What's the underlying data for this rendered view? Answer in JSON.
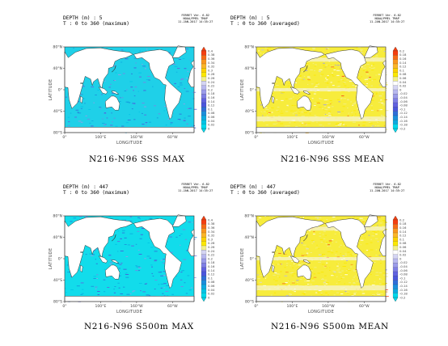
{
  "ferret_label": [
    "FERRET Ver. 6.82",
    "NOAA/PMEL TMAP",
    "11-JAN-2017 14:35:27"
  ],
  "palettes": {
    "max": [
      "#f43e10",
      "#f76a16",
      "#f9961e",
      "#fbb428",
      "#fdd000",
      "#fbe800",
      "#f2f08a",
      "#d5d5f3",
      "#b8b8ef",
      "#9b9bea",
      "#7e7ee5",
      "#6161e0",
      "#4a55dc",
      "#2f6ed8",
      "#1b8edb",
      "#0da9e0",
      "#00c3e5",
      "#00d8eb"
    ],
    "mean": [
      "#f43e10",
      "#f76a16",
      "#f9961e",
      "#fbb428",
      "#fdd000",
      "#fbe800",
      "#f2f08a",
      "#ffffff",
      "#d5d5f3",
      "#b8b8ef",
      "#9b9bea",
      "#7e7ee5",
      "#6161e0",
      "#4a55dc",
      "#2f6ed8",
      "#1b8edb",
      "#0da9e0",
      "#00d8eb"
    ]
  },
  "chart_data": [
    {
      "type": "heatmap",
      "title": "N216-N96 SSS MAX",
      "header": [
        "DEPTH (m) : 5",
        "T : 0 to 360 (maximum)"
      ],
      "xlabel": "LONGITUDE",
      "ylabel": "LATITUDE",
      "x_ticks": [
        "0°",
        "100°E",
        "160°W",
        "60°W"
      ],
      "y_ticks": [
        "80°N",
        "40°N",
        "0°",
        "40°S",
        "80°S"
      ],
      "colorbar": [
        "0.4",
        "0.38",
        "0.36",
        "0.34",
        "0.32",
        "0.3",
        "0.28",
        "0.26",
        "0.24",
        "0.22",
        "0.2",
        "0.18",
        "0.16",
        "0.14",
        "0.12",
        "0.1",
        "0.08",
        "0.06",
        "0.04",
        "0.02",
        "0"
      ],
      "palette": "max",
      "dominant_color": "#1fd0e8"
    },
    {
      "type": "heatmap",
      "title": "N216-N96 SSS MEAN",
      "header": [
        "DEPTH (m) : 5",
        "T : 0 to 360 (averaged)"
      ],
      "xlabel": "LONGITUDE",
      "ylabel": "LATITUDE",
      "x_ticks": [
        "0°",
        "100°E",
        "160°W",
        "60°W"
      ],
      "y_ticks": [
        "80°N",
        "40°N",
        "0°",
        "40°S",
        "80°S"
      ],
      "colorbar": [
        "0.2",
        "0.18",
        "0.16",
        "0.14",
        "0.12",
        "0.1",
        "0.08",
        "0.06",
        "0.04",
        "0.02",
        "0",
        "-0.02",
        "-0.04",
        "-0.06",
        "-0.08",
        "-0.1",
        "-0.12",
        "-0.14",
        "-0.16",
        "-0.18",
        "-0.2"
      ],
      "palette": "mean",
      "dominant_color": "#f7ec3c"
    },
    {
      "type": "heatmap",
      "title": "N216-N96 S500m MAX",
      "header": [
        "DEPTH (m) : 447",
        "T : 0 to 360 (maximum)"
      ],
      "xlabel": "LONGITUDE",
      "ylabel": "LATITUDE",
      "x_ticks": [
        "0°",
        "100°E",
        "160°W",
        "60°W"
      ],
      "y_ticks": [
        "80°N",
        "40°N",
        "0°",
        "40°S",
        "80°S"
      ],
      "colorbar": [
        "0.4",
        "0.38",
        "0.36",
        "0.34",
        "0.32",
        "0.3",
        "0.28",
        "0.26",
        "0.24",
        "0.22",
        "0.2",
        "0.18",
        "0.16",
        "0.14",
        "0.12",
        "0.1",
        "0.08",
        "0.06",
        "0.04",
        "0.02",
        "0"
      ],
      "palette": "max",
      "dominant_color": "#12dceb"
    },
    {
      "type": "heatmap",
      "title": "N216-N96 S500m MEAN",
      "header": [
        "DEPTH (m) : 447",
        "T : 0 to 360 (averaged)"
      ],
      "xlabel": "LONGITUDE",
      "ylabel": "LATITUDE",
      "x_ticks": [
        "0°",
        "100°E",
        "160°W",
        "60°W"
      ],
      "y_ticks": [
        "80°N",
        "40°N",
        "0°",
        "40°S",
        "80°S"
      ],
      "colorbar": [
        "0.2",
        "0.18",
        "0.16",
        "0.14",
        "0.12",
        "0.1",
        "0.08",
        "0.06",
        "0.04",
        "0.02",
        "0",
        "-0.02",
        "-0.04",
        "-0.06",
        "-0.08",
        "-0.1",
        "-0.12",
        "-0.14",
        "-0.16",
        "-0.18",
        "-0.2"
      ],
      "palette": "mean",
      "dominant_color": "#f7ec3c"
    }
  ]
}
